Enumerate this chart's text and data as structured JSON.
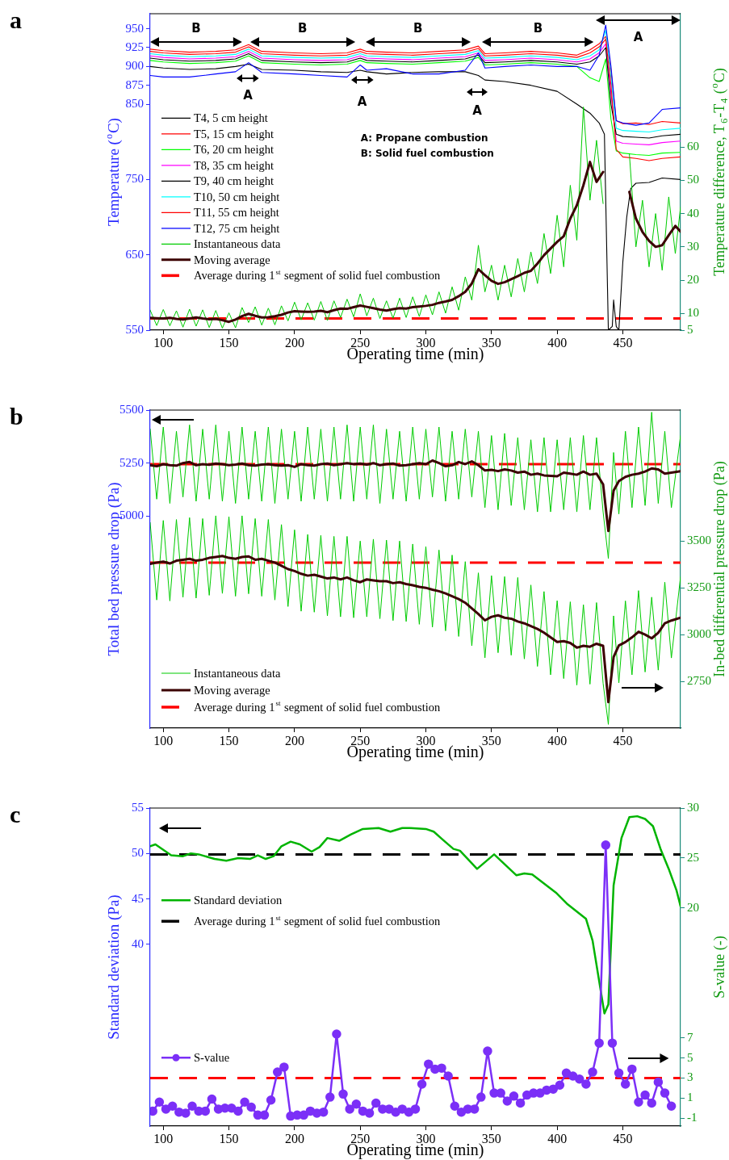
{
  "chart_data": [
    {
      "type": "line",
      "title": "a",
      "xlabel": "Operating time (min)",
      "ylabel": "Temperature ($^{o}$C)",
      "y2label": "Temperature difference, T$_{6}$-T$_{4}$ ($^{o}$C)",
      "xlim": [
        90,
        494
      ],
      "xticks": [
        100,
        150,
        200,
        250,
        300,
        350,
        400,
        450
      ],
      "ylim": [
        550,
        970
      ],
      "yticks": [
        550,
        650,
        750,
        850,
        875,
        900,
        925,
        950
      ],
      "y2lim": [
        5,
        100
      ],
      "y2ticks": [
        5,
        10,
        20,
        30,
        40,
        50,
        60
      ],
      "legend": "left",
      "x": [
        90,
        100,
        120,
        140,
        155,
        165,
        175,
        200,
        220,
        240,
        250,
        255,
        270,
        290,
        310,
        330,
        340,
        345,
        360,
        380,
        400,
        415,
        425,
        432,
        437,
        441,
        445,
        450,
        460,
        470,
        480,
        494
      ],
      "series": [
        {
          "name": "T4, 5 cm height",
          "color": "#000000",
          "x": [
            90,
            100,
            120,
            140,
            155,
            165,
            175,
            200,
            220,
            240,
            250,
            255,
            270,
            290,
            310,
            330,
            340,
            345,
            360,
            380,
            400,
            415,
            425,
            432,
            436,
            439,
            442,
            443,
            445,
            447,
            450,
            453,
            456,
            460,
            470,
            480,
            494
          ],
          "values": [
            900,
            898,
            896,
            897,
            900,
            903,
            896,
            895,
            893,
            892,
            895,
            893,
            890,
            892,
            893,
            893,
            888,
            882,
            880,
            875,
            867,
            850,
            838,
            825,
            810,
            550,
            555,
            590,
            555,
            550,
            640,
            700,
            738,
            745,
            746,
            752,
            750
          ]
        },
        {
          "name": "T5, 15 cm height",
          "color": "#ff0000",
          "values": [
            923,
            921,
            919,
            920,
            922,
            929,
            920,
            918,
            917,
            918,
            923,
            920,
            919,
            918,
            920,
            922,
            927,
            917,
            918,
            920,
            918,
            915,
            922,
            930,
            940,
            895,
            828,
            824,
            825,
            823,
            827,
            825
          ]
        },
        {
          "name": "T6, 20 cm height",
          "color": "#00ff00",
          "values": [
            908,
            906,
            904,
            905,
            907,
            914,
            905,
            903,
            902,
            903,
            908,
            905,
            904,
            903,
            905,
            907,
            912,
            902,
            903,
            905,
            903,
            900,
            885,
            880,
            910,
            830,
            788,
            785,
            783,
            782,
            785,
            786
          ]
        },
        {
          "name": "T8, 35 cm height",
          "color": "#ff00ff",
          "values": [
            914,
            912,
            910,
            911,
            913,
            920,
            911,
            909,
            908,
            909,
            914,
            911,
            910,
            909,
            911,
            913,
            918,
            908,
            909,
            911,
            909,
            906,
            910,
            918,
            930,
            865,
            801,
            798,
            797,
            796,
            799,
            801
          ]
        },
        {
          "name": "T9, 40 cm height",
          "color": "#000000",
          "values": [
            911,
            909,
            907,
            908,
            910,
            917,
            908,
            906,
            905,
            906,
            911,
            908,
            907,
            906,
            908,
            910,
            915,
            905,
            906,
            908,
            906,
            903,
            906,
            914,
            925,
            850,
            810,
            807,
            806,
            805,
            808,
            810
          ]
        },
        {
          "name": "T10, 50 cm height",
          "color": "#00ffff",
          "values": [
            917,
            915,
            913,
            914,
            916,
            923,
            914,
            912,
            911,
            912,
            917,
            914,
            913,
            912,
            914,
            916,
            921,
            911,
            912,
            914,
            912,
            909,
            914,
            922,
            948,
            885,
            818,
            815,
            814,
            813,
            816,
            818
          ]
        },
        {
          "name": "T11, 55 cm height",
          "color": "#ff0000",
          "values": [
            920,
            918,
            916,
            917,
            919,
            926,
            917,
            915,
            914,
            915,
            920,
            917,
            916,
            915,
            917,
            919,
            924,
            914,
            915,
            917,
            915,
            912,
            918,
            926,
            936,
            875,
            790,
            780,
            778,
            775,
            778,
            780
          ]
        },
        {
          "name": "T12, 75 cm height",
          "color": "#0000ff",
          "values": [
            888,
            886,
            886,
            890,
            893,
            905,
            892,
            890,
            888,
            886,
            902,
            895,
            897,
            890,
            890,
            895,
            918,
            898,
            900,
            902,
            900,
            900,
            895,
            915,
            955,
            900,
            828,
            825,
            822,
            825,
            843,
            845
          ]
        },
        {
          "name": "Instantaneous data",
          "color": "#00cc00",
          "axis": "y2",
          "x": [
            90,
            95,
            100,
            105,
            110,
            115,
            120,
            125,
            130,
            135,
            140,
            145,
            150,
            155,
            160,
            165,
            170,
            175,
            180,
            185,
            190,
            195,
            200,
            205,
            210,
            215,
            220,
            225,
            230,
            235,
            240,
            245,
            250,
            255,
            260,
            265,
            270,
            275,
            280,
            285,
            290,
            295,
            300,
            305,
            310,
            315,
            320,
            325,
            330,
            335,
            340,
            345,
            350,
            355,
            360,
            365,
            370,
            375,
            380,
            385,
            390,
            395,
            400,
            405,
            410,
            415,
            420,
            425,
            430,
            435,
            440,
            445,
            450,
            455,
            460,
            465,
            470,
            475,
            480,
            485,
            490,
            494
          ],
          "values": [
            11.0,
            6.4,
            11.2,
            6.3,
            10.8,
            5.9,
            11.3,
            6.2,
            11.1,
            5.8,
            10.9,
            5.6,
            10.2,
            5.7,
            11.8,
            7.3,
            12.0,
            6.5,
            11.6,
            6.6,
            12.3,
            7.8,
            13.4,
            8.1,
            13.2,
            8.0,
            13.6,
            7.9,
            13.8,
            8.8,
            14.3,
            9.0,
            15.9,
            9.3,
            14.6,
            8.5,
            13.8,
            8.6,
            14.6,
            8.8,
            15.0,
            9.1,
            15.6,
            9.6,
            16.5,
            10.1,
            18.0,
            11.0,
            21.0,
            14.0,
            30.5,
            16.5,
            24.5,
            14.0,
            24.5,
            15.0,
            26.5,
            16.5,
            28.5,
            19.0,
            34.0,
            22.0,
            39.5,
            24.0,
            48.5,
            32.0,
            72.0,
            44.0,
            62.0,
            43.0,
            null,
            null,
            null,
            58.0,
            30.0,
            44.0,
            24.0,
            40.0,
            23.0,
            45.0,
            28.0,
            42.0
          ]
        },
        {
          "name": "Moving average",
          "color": "#3b0000",
          "axis": "y2",
          "x": [
            90,
            95,
            100,
            105,
            110,
            115,
            120,
            125,
            130,
            135,
            140,
            145,
            150,
            155,
            160,
            165,
            170,
            175,
            180,
            185,
            190,
            195,
            200,
            205,
            210,
            215,
            220,
            225,
            230,
            235,
            240,
            245,
            250,
            255,
            260,
            265,
            270,
            275,
            280,
            285,
            290,
            295,
            300,
            305,
            310,
            315,
            320,
            325,
            330,
            335,
            340,
            345,
            350,
            355,
            360,
            365,
            370,
            375,
            380,
            385,
            390,
            395,
            400,
            405,
            410,
            415,
            420,
            425,
            430,
            435,
            440,
            445,
            450,
            455,
            460,
            465,
            470,
            475,
            480,
            485,
            490,
            494
          ],
          "values": [
            8.7,
            8.6,
            8.5,
            8.7,
            8.4,
            8.2,
            8.5,
            8.8,
            8.5,
            8.3,
            8.4,
            8.0,
            7.5,
            8.2,
            9.2,
            9.9,
            9.3,
            8.8,
            8.9,
            9.2,
            9.6,
            10.3,
            10.7,
            10.6,
            10.5,
            10.6,
            10.8,
            10.4,
            11.0,
            11.5,
            11.4,
            11.9,
            12.4,
            12.0,
            11.6,
            11.2,
            10.9,
            11.3,
            11.6,
            11.5,
            11.9,
            12.1,
            12.3,
            12.6,
            13.2,
            13.6,
            14.1,
            15.2,
            16.5,
            19.0,
            23.3,
            21.5,
            19.8,
            18.9,
            19.4,
            20.3,
            21.2,
            22.2,
            22.8,
            25.0,
            27.5,
            29.5,
            31.5,
            33.2,
            38.5,
            42.5,
            48.5,
            55.5,
            49.5,
            52.5,
            null,
            null,
            null,
            46.5,
            38.5,
            34.5,
            31.8,
            30.0,
            30.5,
            33.5,
            36.3,
            34.6
          ]
        }
      ],
      "ref_lines": [
        {
          "axis": "y2",
          "value": 8.5,
          "label": "Average during 1$^{st}$ segment of solid fuel combustion",
          "color": "#ff0000",
          "line_style": "dashed"
        }
      ],
      "annotations": [
        "A: Propane combustion",
        "B: Solid fuel combustion",
        "B",
        "B",
        "B",
        "B",
        "A",
        "A",
        "A",
        "A"
      ]
    },
    {
      "type": "line",
      "title": "b",
      "xlabel": "Operating time (min)",
      "ylabel": "Total bed pressure drop (Pa)",
      "y2label": "In-bed differential pressure drop (Pa)",
      "xlim": [
        90,
        494
      ],
      "xticks": [
        100,
        150,
        200,
        250,
        300,
        350,
        400,
        450
      ],
      "ylim": [
        4000,
        5500
      ],
      "yticks": [
        5000,
        5250,
        5500
      ],
      "y2lim": [
        2500,
        4200
      ],
      "y2ticks": [
        2750,
        3000,
        3250,
        3500
      ],
      "legend": "bottom left",
      "x": [
        90,
        95,
        100,
        105,
        110,
        115,
        120,
        125,
        130,
        135,
        140,
        145,
        150,
        155,
        160,
        165,
        170,
        175,
        180,
        185,
        190,
        195,
        200,
        205,
        210,
        215,
        220,
        225,
        230,
        235,
        240,
        245,
        250,
        255,
        260,
        265,
        270,
        275,
        280,
        285,
        290,
        295,
        300,
        305,
        310,
        315,
        320,
        325,
        330,
        335,
        340,
        345,
        350,
        355,
        360,
        365,
        370,
        375,
        380,
        385,
        390,
        395,
        400,
        405,
        410,
        415,
        420,
        425,
        430,
        435,
        439,
        443,
        447,
        452,
        457,
        462,
        467,
        472,
        477,
        482,
        487,
        494
      ],
      "series": [
        {
          "name": "Instantaneous data",
          "color": "#00cc00",
          "values": [
            5410,
            5080,
            5420,
            5060,
            5400,
            5090,
            5430,
            5070,
            5410,
            5080,
            5430,
            5070,
            5400,
            5060,
            5420,
            5080,
            5400,
            5070,
            5420,
            5060,
            5410,
            5080,
            5400,
            5070,
            5420,
            5080,
            5410,
            5070,
            5420,
            5080,
            5430,
            5070,
            5420,
            5080,
            5430,
            5060,
            5410,
            5080,
            5400,
            5070,
            5420,
            5080,
            5410,
            5090,
            5420,
            5070,
            5400,
            5080,
            5410,
            5090,
            5400,
            5040,
            5380,
            5030,
            5390,
            5050,
            5370,
            5030,
            5360,
            5020,
            5370,
            5020,
            5360,
            5030,
            5370,
            5020,
            5380,
            5030,
            5370,
            5020,
            4800,
            5300,
            5010,
            5400,
            5040,
            5420,
            5050,
            5490,
            5060,
            5400,
            5040,
            5380
          ]
        },
        {
          "name": "Moving average",
          "color": "#3b0000",
          "values": [
            5240,
            5235,
            5245,
            5240,
            5238,
            5250,
            5255,
            5240,
            5245,
            5242,
            5248,
            5245,
            5240,
            5243,
            5248,
            5240,
            5238,
            5243,
            5245,
            5240,
            5238,
            5240,
            5232,
            5245,
            5240,
            5238,
            5245,
            5248,
            5240,
            5245,
            5250,
            5245,
            5248,
            5243,
            5250,
            5240,
            5245,
            5248,
            5238,
            5240,
            5245,
            5250,
            5245,
            5262,
            5250,
            5235,
            5240,
            5255,
            5245,
            5258,
            5240,
            5215,
            5218,
            5212,
            5220,
            5215,
            5205,
            5210,
            5195,
            5200,
            5192,
            5190,
            5188,
            5205,
            5200,
            5195,
            5210,
            5195,
            5200,
            5150,
            4930,
            5120,
            5165,
            5185,
            5195,
            5200,
            5210,
            5225,
            5220,
            5200,
            5205,
            5212
          ]
        },
        {
          "color": "#00cc00",
          "axis": "y2",
          "values": [
            3598,
            3185,
            3610,
            3180,
            3615,
            3200,
            3625,
            3195,
            3620,
            3210,
            3635,
            3220,
            3630,
            3205,
            3635,
            3218,
            3620,
            3205,
            3615,
            3185,
            3588,
            3150,
            3560,
            3125,
            3535,
            3120,
            3530,
            3100,
            3525,
            3095,
            3525,
            3090,
            3500,
            3095,
            3510,
            3085,
            3505,
            3075,
            3500,
            3070,
            3484,
            3055,
            3470,
            3040,
            3452,
            3020,
            3425,
            2990,
            3390,
            2940,
            3330,
            2876,
            3315,
            2903,
            3310,
            2890,
            3305,
            2870,
            3265,
            2830,
            3230,
            2785,
            3181,
            2765,
            3175,
            2730,
            3160,
            2735,
            3171,
            2740,
            2520,
            3100,
            2742,
            3180,
            2785,
            3235,
            2800,
            3200,
            2810,
            3280,
            2875,
            3310
          ]
        },
        {
          "color": "#3b0000",
          "axis": "y2",
          "values": [
            3378,
            3385,
            3390,
            3380,
            3395,
            3400,
            3405,
            3395,
            3400,
            3410,
            3415,
            3420,
            3410,
            3405,
            3415,
            3418,
            3400,
            3405,
            3395,
            3385,
            3368,
            3350,
            3340,
            3325,
            3315,
            3320,
            3310,
            3300,
            3305,
            3295,
            3305,
            3290,
            3280,
            3295,
            3290,
            3285,
            3285,
            3275,
            3280,
            3270,
            3264,
            3255,
            3250,
            3240,
            3232,
            3220,
            3205,
            3190,
            3170,
            3140,
            3110,
            3076,
            3095,
            3103,
            3090,
            3085,
            3070,
            3060,
            3045,
            3030,
            3010,
            2985,
            2961,
            2965,
            2955,
            2930,
            2940,
            2935,
            2951,
            2940,
            2639,
            2880,
            2942,
            2960,
            2985,
            3015,
            3000,
            2980,
            3010,
            3060,
            3075,
            3090
          ]
        }
      ],
      "ref_lines": [
        {
          "axis": "y",
          "value": 5245,
          "label": "Average during 1$^{st}$ segment of solid fuel combustion",
          "color": "#ff0000",
          "line_style": "dashed"
        },
        {
          "axis": "y2",
          "value": 3385,
          "color": "#ff0000",
          "line_style": "dashed"
        }
      ]
    },
    {
      "type": "line",
      "title": "c",
      "xlabel": "Operating time (min)",
      "ylabel": "Standard deviation (Pa)",
      "y2label": "S-value (-)",
      "xlim": [
        90,
        494
      ],
      "xticks": [
        100,
        150,
        200,
        250,
        300,
        350,
        400,
        450
      ],
      "ylim": [
        20,
        55
      ],
      "yticks": [
        40,
        45,
        50,
        55
      ],
      "y2lim": [
        -1.8,
        30
      ],
      "y2ticks": [
        -1,
        1,
        3,
        5,
        7,
        20,
        25,
        30
      ],
      "legend": "left",
      "series": [
        {
          "name": "Standard deviation",
          "color": "#00b400",
          "x": [
            90,
            94,
            100,
            106,
            115,
            121,
            127,
            139,
            148,
            157,
            166,
            172,
            178,
            184,
            190,
            197,
            204,
            213,
            219,
            225,
            234,
            243,
            252,
            264,
            273,
            282,
            288,
            300,
            306,
            313,
            321,
            326,
            339,
            352,
            369,
            375,
            381,
            399,
            408,
            422,
            427,
            436,
            439,
            443,
            449,
            455,
            461,
            467,
            473,
            479,
            485,
            491,
            494
          ],
          "values": [
            50.8,
            51.0,
            50.4,
            49.8,
            49.7,
            50.0,
            49.9,
            49.4,
            49.2,
            49.5,
            49.4,
            49.8,
            49.4,
            49.7,
            50.8,
            51.3,
            51.0,
            50.2,
            50.7,
            51.7,
            51.4,
            52.1,
            52.7,
            52.8,
            52.4,
            52.8,
            52.8,
            52.7,
            52.4,
            51.5,
            50.5,
            50.3,
            48.3,
            49.9,
            47.6,
            47.8,
            47.7,
            45.7,
            44.4,
            42.8,
            40.4,
            32.4,
            33.4,
            46.5,
            51.7,
            54.0,
            54.1,
            53.8,
            53.0,
            50.4,
            48.3,
            45.9,
            44.2
          ]
        },
        {
          "name": "S-value",
          "color": "#7b2ff7",
          "axis": "y2",
          "marker": "circle",
          "x": [
            92,
            97,
            102,
            107,
            112,
            117,
            122,
            127,
            132,
            137,
            142,
            147,
            152,
            157,
            162,
            167,
            172,
            177,
            182,
            187,
            192,
            197,
            202,
            207,
            212,
            217,
            222,
            227,
            232,
            237,
            242,
            247,
            252,
            257,
            262,
            267,
            272,
            277,
            282,
            287,
            292,
            297,
            302,
            307,
            312,
            317,
            322,
            327,
            332,
            337,
            342,
            347,
            352,
            357,
            362,
            367,
            372,
            377,
            382,
            387,
            392,
            397,
            402,
            407,
            412,
            417,
            422,
            427,
            432,
            437,
            442,
            447,
            452,
            457,
            462,
            467,
            472,
            477,
            482,
            487
          ],
          "values": [
            -0.3,
            0.6,
            -0.1,
            0.2,
            -0.4,
            -0.5,
            0.2,
            -0.3,
            -0.3,
            0.9,
            -0.1,
            0.0,
            0.0,
            -0.3,
            0.6,
            0.1,
            -0.7,
            -0.7,
            0.8,
            3.6,
            4.1,
            -0.8,
            -0.7,
            -0.7,
            -0.3,
            -0.5,
            -0.4,
            1.1,
            7.4,
            1.4,
            -0.1,
            0.4,
            -0.3,
            -0.5,
            0.5,
            -0.1,
            -0.1,
            -0.4,
            -0.1,
            -0.4,
            -0.1,
            2.4,
            4.4,
            3.9,
            4.0,
            3.2,
            0.2,
            -0.4,
            -0.1,
            -0.1,
            1.1,
            5.7,
            1.5,
            1.5,
            0.7,
            1.2,
            0.5,
            1.3,
            1.5,
            1.5,
            1.8,
            1.9,
            2.3,
            3.5,
            3.2,
            2.9,
            2.4,
            3.6,
            6.5,
            26.3,
            6.5,
            3.5,
            2.4,
            3.9,
            0.6,
            1.3,
            0.5,
            2.6,
            1.5,
            0.2
          ]
        }
      ],
      "ref_lines": [
        {
          "axis": "y",
          "value": 49.9,
          "label": "Average during 1$^{st}$ segment of solid fuel combustion",
          "color": "#000000",
          "line_style": "dashed"
        },
        {
          "axis": "y2",
          "value": 3,
          "color": "#ff0000",
          "line_style": "dashed"
        }
      ]
    }
  ]
}
